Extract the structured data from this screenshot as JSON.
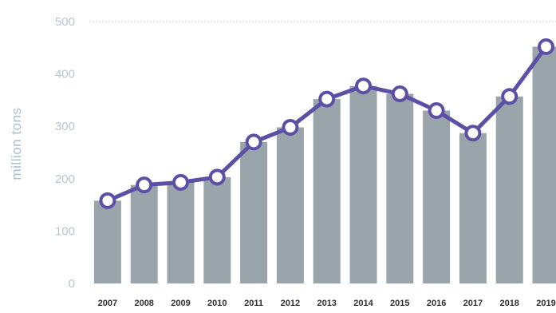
{
  "chart_data": {
    "type": "bar",
    "title": "",
    "xlabel": "",
    "ylabel": "million tons",
    "ylim": [
      0,
      500
    ],
    "yticks": [
      0,
      100,
      200,
      300,
      400,
      500
    ],
    "grid": "top gridline only",
    "categories": [
      "2007",
      "2008",
      "2009",
      "2010",
      "2011",
      "2012",
      "2013",
      "2014",
      "2015",
      "2016",
      "2017",
      "2018",
      "2019"
    ],
    "values": [
      158,
      188,
      193,
      203,
      270,
      298,
      352,
      377,
      362,
      330,
      287,
      357,
      452
    ],
    "line_overlay": true,
    "colors": {
      "bar": "#9aa4ab",
      "line": "#5b50a6",
      "marker_fill": "#ffffff",
      "axis_text": "#b9c6d0",
      "ylabel": "#a9c0cf",
      "xtick_text": "#2e2e2e",
      "gridline": "#cfd6dc"
    }
  }
}
